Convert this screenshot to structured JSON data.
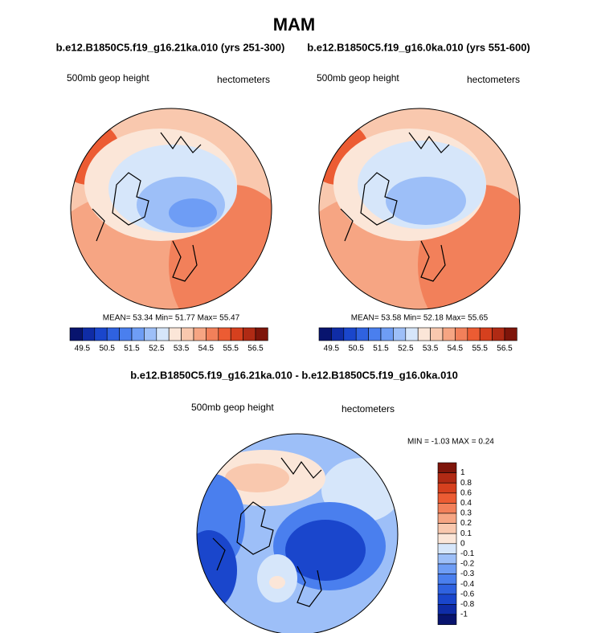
{
  "title": "MAM",
  "panels": [
    {
      "subtitle": "b.e12.B1850C5.f19_g16.21ka.010 (yrs 251-300)",
      "left_label": "500mb geop height",
      "right_label": "hectometers",
      "stats": "MEAN=  53.34  Min=  51.77  Max=  55.47",
      "colorbar_labels": [
        "49.5",
        "50.5",
        "51.5",
        "52.5",
        "53.5",
        "54.5",
        "55.5",
        "56.5"
      ]
    },
    {
      "subtitle": "b.e12.B1850C5.f19_g16.0ka.010 (yrs 551-600)",
      "left_label": "500mb geop height",
      "right_label": "hectometers",
      "stats": "MEAN=  53.58  Min=  52.18  Max=  55.65",
      "colorbar_labels": [
        "49.5",
        "50.5",
        "51.5",
        "52.5",
        "53.5",
        "54.5",
        "55.5",
        "56.5"
      ]
    }
  ],
  "colors": [
    "#08146e",
    "#0f2ca6",
    "#1a46cc",
    "#2f62e0",
    "#4a7fee",
    "#6e9df5",
    "#9dbff8",
    "#d6e6fa",
    "#fbe6d8",
    "#f9c8ae",
    "#f6a583",
    "#f2805a",
    "#ec5c33",
    "#d6401e",
    "#b02a14",
    "#7e150a"
  ],
  "difference": {
    "title": "b.e12.B1850C5.f19_g16.21ka.010 - b.e12.B1850C5.f19_g16.0ka.010",
    "left_label": "500mb geop height",
    "right_label": "hectometers",
    "stats": "MIN =  -1.03 MAX =   0.24",
    "colorbar_labels": [
      "1",
      "0.8",
      "0.6",
      "0.4",
      "0.3",
      "0.2",
      "0.1",
      "0",
      "-0.1",
      "-0.2",
      "-0.3",
      "-0.4",
      "-0.6",
      "-0.8",
      "-1"
    ]
  }
}
